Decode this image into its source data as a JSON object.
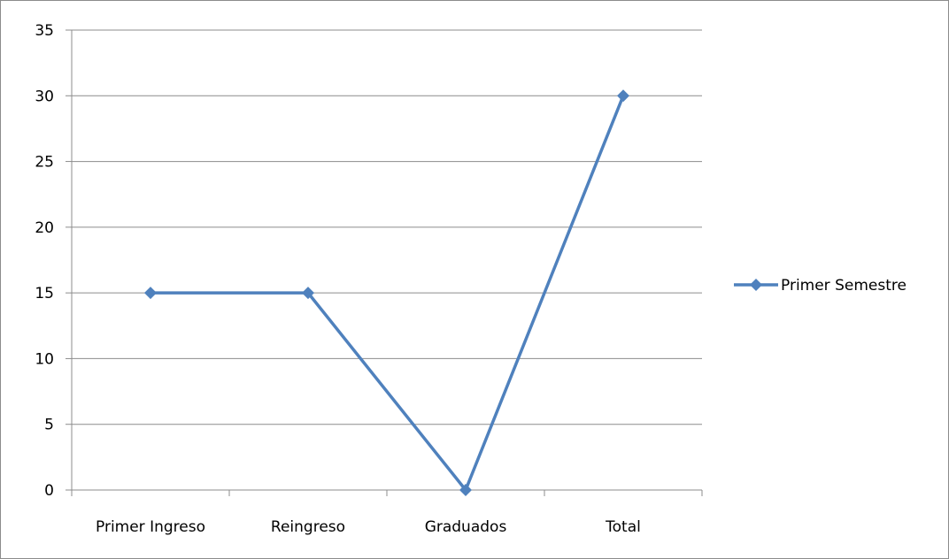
{
  "chart_data": {
    "type": "line",
    "categories": [
      "Primer Ingreso",
      "Reingreso",
      "Graduados",
      "Total"
    ],
    "series": [
      {
        "name": "Primer Semestre",
        "values": [
          15,
          15,
          0,
          30
        ],
        "color": "#4f81bd",
        "marker": "diamond"
      }
    ],
    "ylim": [
      0,
      35
    ],
    "yticks": [
      0,
      5,
      10,
      15,
      20,
      25,
      30,
      35
    ],
    "grid": true,
    "legend_position": "right"
  }
}
